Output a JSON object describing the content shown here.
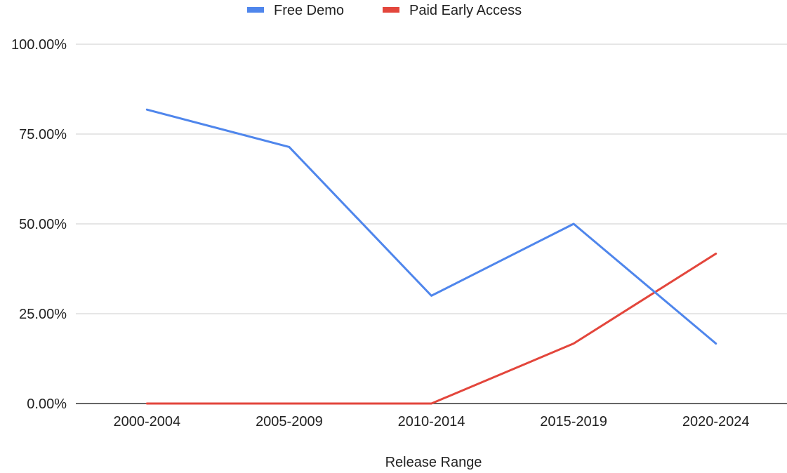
{
  "chart_data": {
    "type": "line",
    "title": "",
    "xlabel": "Release Range",
    "ylabel": "",
    "categories": [
      "2000-2004",
      "2005-2009",
      "2010-2014",
      "2015-2019",
      "2020-2024"
    ],
    "series": [
      {
        "name": "Free Demo",
        "color": "#4f86ec",
        "values": [
          81.8,
          71.4,
          30.0,
          50.0,
          16.7
        ]
      },
      {
        "name": "Paid Early Access",
        "color": "#e3463c",
        "values": [
          0.0,
          0.0,
          0.0,
          16.7,
          41.7
        ]
      }
    ],
    "ylim": [
      0,
      100
    ],
    "yticks": [
      "0.00%",
      "25.00%",
      "50.00%",
      "75.00%",
      "100.00%"
    ],
    "grid": true,
    "legend_position": "top-center"
  }
}
